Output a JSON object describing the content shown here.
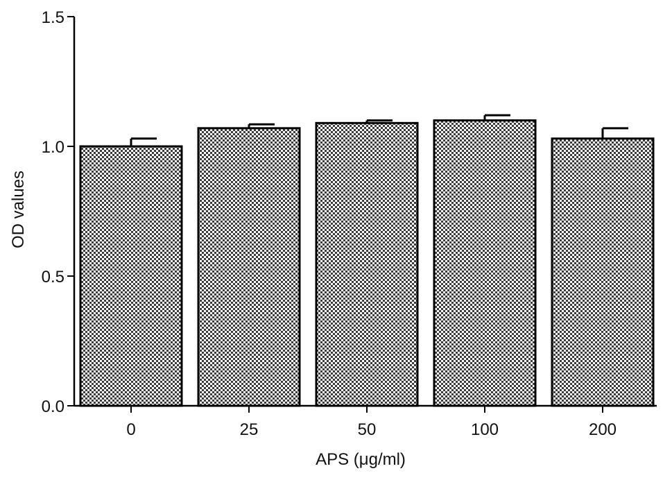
{
  "chart_data": {
    "type": "bar",
    "title": "",
    "xlabel": "APS (μg/ml)",
    "ylabel": "OD values",
    "categories": [
      "0",
      "25",
      "50",
      "100",
      "200"
    ],
    "values": [
      1.0,
      1.07,
      1.09,
      1.1,
      1.03
    ],
    "errors": [
      0.03,
      0.015,
      0.01,
      0.02,
      0.04
    ],
    "ylim": [
      0,
      1.5
    ],
    "yticks": [
      "0.0",
      "0.5",
      "1.0",
      "1.5"
    ],
    "grid": false,
    "legend": "none",
    "bar_fill": "checkerboard",
    "colors": {
      "pattern_dark": "#3c3c3c",
      "pattern_light": "#ffffff",
      "axis": "#000000"
    }
  }
}
